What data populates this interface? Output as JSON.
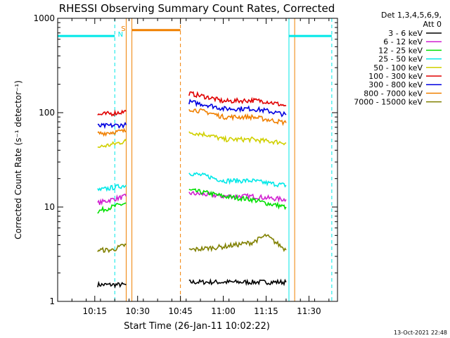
{
  "chart_data": {
    "type": "line",
    "title": "RHESSI Observing Summary Count Rates, Corrected",
    "xlabel": "Start Time (26-Jan-11 10:02:22)",
    "ylabel": "Corrected Count Rate (s⁻¹ detector⁻¹)",
    "xlim": [
      "10:02",
      "11:40"
    ],
    "ylim": [
      1,
      1000
    ],
    "yscale": "log",
    "x_ticks": [
      "10:15",
      "10:30",
      "10:45",
      "11:00",
      "11:15",
      "11:30"
    ],
    "y_ticks": [
      {
        "value": 1,
        "label": "1"
      },
      {
        "value": 10,
        "label": "10"
      },
      {
        "value": 100,
        "label": "100"
      },
      {
        "value": 1000,
        "label": "1000"
      }
    ],
    "legend_header": [
      "Det 1,3,4,5,6,9,",
      "Att 0"
    ],
    "legend_position": "right",
    "series": [
      {
        "name": "3 - 6 keV",
        "color": "#000000",
        "segments": [
          {
            "x": [
              "10:16",
              "10:21",
              "10:26"
            ],
            "y": [
              1.5,
              1.5,
              1.5
            ]
          },
          {
            "x": [
              "10:48",
              "11:00",
              "11:15",
              "11:22"
            ],
            "y": [
              1.6,
              1.6,
              1.6,
              1.6
            ]
          }
        ]
      },
      {
        "name": "6 - 12 keV",
        "color": "#d020d0",
        "segments": [
          {
            "x": [
              "10:16",
              "10:21",
              "10:26"
            ],
            "y": [
              11,
              12,
              13
            ]
          },
          {
            "x": [
              "10:48",
              "10:55",
              "11:00",
              "11:10",
              "11:15",
              "11:22"
            ],
            "y": [
              14,
              13.5,
              13,
              13,
              12.5,
              12
            ]
          }
        ]
      },
      {
        "name": "12 - 25 keV",
        "color": "#00e000",
        "segments": [
          {
            "x": [
              "10:16",
              "10:21",
              "10:26"
            ],
            "y": [
              9,
              10,
              11
            ]
          },
          {
            "x": [
              "10:48",
              "10:55",
              "11:00",
              "11:10",
              "11:15",
              "11:22"
            ],
            "y": [
              15,
              14,
              13,
              12,
              11,
              10
            ]
          }
        ]
      },
      {
        "name": "25 - 50 keV",
        "color": "#00e8e8",
        "segments": [
          {
            "x": [
              "10:16",
              "10:21",
              "10:26"
            ],
            "y": [
              15,
              16,
              17
            ]
          },
          {
            "x": [
              "10:48",
              "10:55",
              "11:00",
              "11:10",
              "11:15",
              "11:22"
            ],
            "y": [
              23,
              21,
              19,
              19,
              18,
              17
            ]
          }
        ]
      },
      {
        "name": "50 - 100 keV",
        "color": "#d0d000",
        "segments": [
          {
            "x": [
              "10:16",
              "10:21",
              "10:26"
            ],
            "y": [
              43,
              46,
              50
            ]
          },
          {
            "x": [
              "10:48",
              "10:55",
              "11:00",
              "11:10",
              "11:15",
              "11:22"
            ],
            "y": [
              62,
              58,
              52,
              52,
              50,
              48
            ]
          }
        ]
      },
      {
        "name": "100 - 300 keV",
        "color": "#e00000",
        "segments": [
          {
            "x": [
              "10:16",
              "10:21",
              "10:26"
            ],
            "y": [
              95,
              98,
              103
            ]
          },
          {
            "x": [
              "10:48",
              "10:55",
              "11:00",
              "11:10",
              "11:15",
              "11:22"
            ],
            "y": [
              160,
              145,
              132,
              135,
              132,
              118
            ]
          }
        ]
      },
      {
        "name": "300 - 800 keV",
        "color": "#0000e0",
        "segments": [
          {
            "x": [
              "10:16",
              "10:21",
              "10:26"
            ],
            "y": [
              72,
              73,
              74
            ]
          },
          {
            "x": [
              "10:48",
              "10:55",
              "11:00",
              "11:10",
              "11:15",
              "11:22"
            ],
            "y": [
              130,
              120,
              110,
              110,
              105,
              95
            ]
          }
        ]
      },
      {
        "name": "800 - 7000 keV",
        "color": "#f08000",
        "segments": [
          {
            "x": [
              "10:16",
              "10:21",
              "10:26"
            ],
            "y": [
              60,
              62,
              64
            ]
          },
          {
            "x": [
              "10:48",
              "10:55",
              "11:00",
              "11:10",
              "11:15",
              "11:22"
            ],
            "y": [
              110,
              100,
              90,
              90,
              85,
              78
            ]
          }
        ]
      },
      {
        "name": "7000 - 15000 keV",
        "color": "#808000",
        "segments": [
          {
            "x": [
              "10:16",
              "10:21",
              "10:26"
            ],
            "y": [
              3.5,
              3.5,
              4
            ]
          },
          {
            "x": [
              "10:48",
              "11:00",
              "11:10",
              "11:15",
              "11:22"
            ],
            "y": [
              3.5,
              3.8,
              4.2,
              5,
              3.5
            ]
          }
        ]
      }
    ],
    "flags": [
      {
        "label": "S",
        "color": "#f08000",
        "x": "10:25"
      },
      {
        "label": "N",
        "color": "#00e8e8",
        "x": "10:24"
      }
    ],
    "vertical_markers": [
      {
        "x": "10:02",
        "color": "#00e8e8",
        "style": "solid"
      },
      {
        "x": "10:22",
        "color": "#00e8e8",
        "style": "dashed"
      },
      {
        "x": "10:26",
        "color": "#f08000",
        "style": "solid"
      },
      {
        "x": "10:28",
        "color": "#f08000",
        "style": "solid"
      },
      {
        "x": "10:45",
        "color": "#f08000",
        "style": "dashed"
      },
      {
        "x": "11:23",
        "color": "#00e8e8",
        "style": "solid"
      },
      {
        "x": "11:25",
        "color": "#f08000",
        "style": "solid"
      },
      {
        "x": "11:38",
        "color": "#00e8e8",
        "style": "dashed"
      }
    ],
    "status_bars": [
      {
        "color": "#00e8e8",
        "x": [
          "10:02",
          "10:22"
        ],
        "y": 650
      },
      {
        "color": "#f08000",
        "x": [
          "10:28",
          "10:45"
        ],
        "y": 750
      },
      {
        "color": "#00e8e8",
        "x": [
          "11:23",
          "11:38"
        ],
        "y": 650
      }
    ]
  },
  "footer": {
    "timestamp": "13-Oct-2021 22:48"
  }
}
